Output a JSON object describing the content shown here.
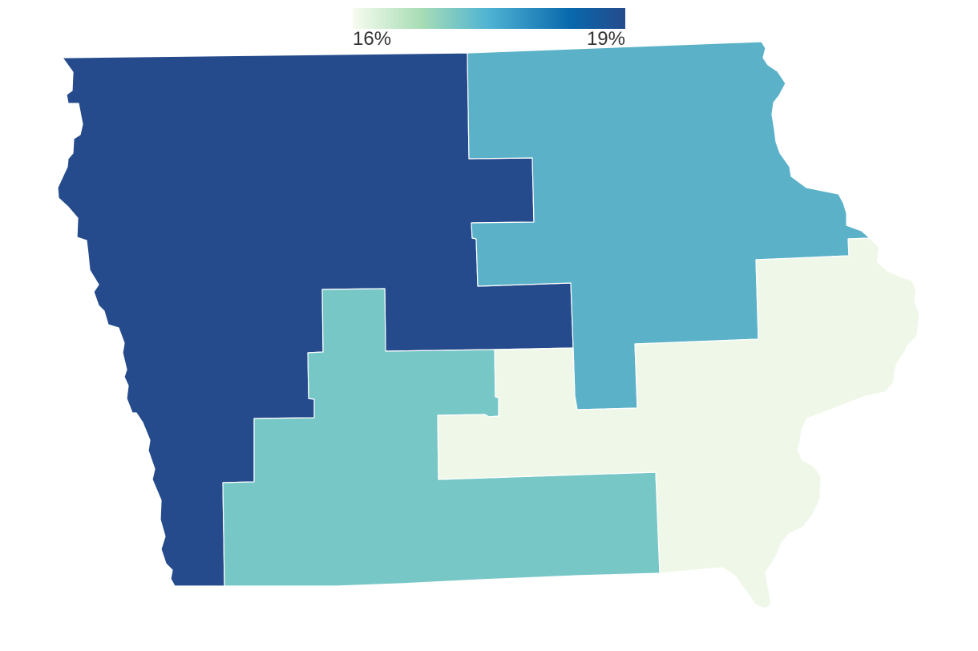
{
  "legend": {
    "min_label": "16%",
    "max_label": "19%",
    "min_value": 16,
    "max_value": 19,
    "gradient_colors": [
      "#f7fcf0",
      "#a8ddb5",
      "#4eb3d3",
      "#0868ac",
      "#254b8c"
    ]
  },
  "chart_data": {
    "type": "choropleth",
    "title": "",
    "scale": {
      "min": 16,
      "max": 19,
      "unit": "%"
    },
    "regions": [
      {
        "id": "district-4",
        "value": 19.0,
        "color": "#254b8c"
      },
      {
        "id": "district-1",
        "value": 17.8,
        "color": "#5bb2c8"
      },
      {
        "id": "district-3",
        "value": 17.3,
        "color": "#77c7c6"
      },
      {
        "id": "district-2",
        "value": 16.0,
        "color": "#eff8e8"
      }
    ]
  }
}
